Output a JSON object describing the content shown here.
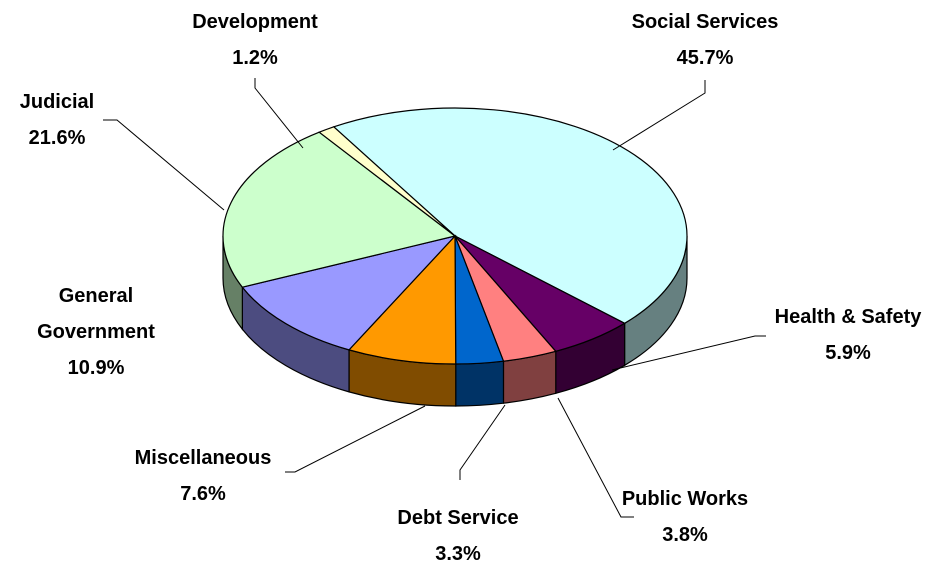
{
  "chart_data": {
    "type": "pie",
    "style": "3d",
    "title": "",
    "slices": [
      {
        "label": "Social Services",
        "value": 45.7,
        "display": "45.7%",
        "top_color": "#CCFFFF",
        "side_color": "#668080"
      },
      {
        "label": "Health & Safety",
        "value": 5.9,
        "display": "5.9%",
        "top_color": "#660066",
        "side_color": "#330033"
      },
      {
        "label": "Public Works",
        "value": 3.8,
        "display": "3.8%",
        "top_color": "#FF8080",
        "side_color": "#804040"
      },
      {
        "label": "Debt Service",
        "value": 3.3,
        "display": "3.3%",
        "top_color": "#0066CC",
        "side_color": "#003366"
      },
      {
        "label": "Miscellaneous",
        "value": 7.6,
        "display": "7.6%",
        "top_color": "#FF9900",
        "side_color": "#804C00"
      },
      {
        "label": "General Government",
        "value": 10.9,
        "display": "10.9%",
        "top_color": "#9999FF",
        "side_color": "#4C4C80"
      },
      {
        "label": "Judicial",
        "value": 21.6,
        "display": "21.6%",
        "top_color": "#CCFFCC",
        "side_color": "#668066"
      },
      {
        "label": "Development",
        "value": 1.2,
        "display": "1.2%",
        "top_color": "#FFFFCC",
        "side_color": "#808066"
      }
    ]
  }
}
